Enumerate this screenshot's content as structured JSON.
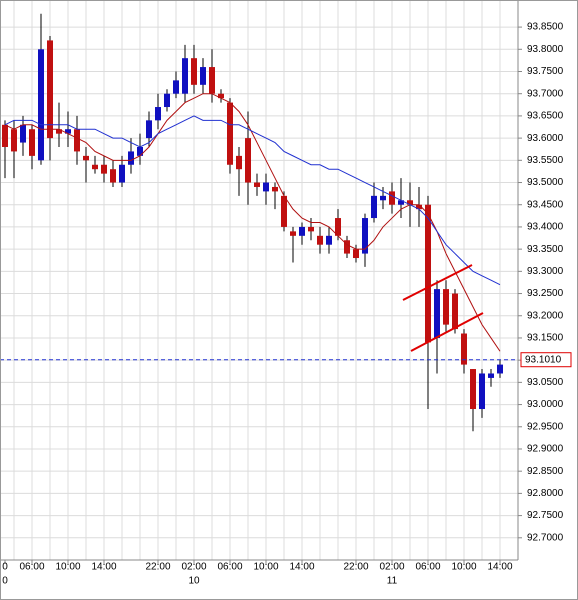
{
  "chart_data": {
    "type": "candlestick",
    "categories": [
      "0",
      null,
      null,
      "06:00",
      null,
      null,
      null,
      "10:00",
      null,
      null,
      null,
      "14:00",
      null,
      null,
      null,
      null,
      null,
      "22:00",
      null,
      null,
      null,
      "02:00",
      null,
      null,
      null,
      "06:00",
      null,
      null,
      null,
      "10:00",
      null,
      null,
      null,
      "14:00",
      null,
      null,
      null,
      null,
      null,
      "22:00",
      null,
      null,
      null,
      "02:00",
      null,
      null,
      null,
      "06:00",
      null,
      null,
      null,
      "10:00",
      null,
      null,
      null,
      "14:00"
    ],
    "day_labels": [
      "0",
      null,
      null,
      null,
      null,
      null,
      null,
      null,
      null,
      null,
      null,
      null,
      null,
      null,
      null,
      null,
      null,
      null,
      null,
      null,
      null,
      "10",
      null,
      null,
      null,
      null,
      null,
      null,
      null,
      null,
      null,
      null,
      null,
      null,
      null,
      null,
      null,
      null,
      null,
      null,
      null,
      null,
      null,
      "11",
      null,
      null,
      null,
      null,
      null,
      null,
      null,
      null,
      null,
      null,
      null,
      null
    ],
    "open": [
      93.63,
      93.62,
      93.59,
      93.62,
      93.55,
      93.82,
      93.62,
      93.61,
      93.62,
      93.56,
      93.54,
      93.54,
      93.53,
      93.5,
      93.54,
      93.56,
      93.6,
      93.64,
      93.67,
      93.7,
      93.7,
      93.78,
      93.72,
      93.76,
      93.7,
      93.68,
      93.56,
      93.6,
      93.5,
      93.48,
      93.49,
      93.47,
      93.39,
      93.38,
      93.4,
      93.38,
      93.36,
      93.42,
      93.37,
      93.35,
      93.34,
      93.42,
      93.46,
      93.48,
      93.45,
      93.46,
      93.45,
      93.45,
      93.15,
      93.26,
      93.25,
      93.16,
      93.08,
      92.99,
      93.06,
      93.07
    ],
    "high": [
      93.64,
      93.64,
      93.65,
      93.63,
      93.88,
      93.83,
      93.68,
      93.66,
      93.65,
      93.58,
      93.56,
      93.56,
      93.55,
      93.56,
      93.6,
      93.61,
      93.66,
      93.7,
      93.71,
      93.75,
      93.81,
      93.81,
      93.78,
      93.8,
      93.71,
      93.69,
      93.58,
      93.66,
      93.52,
      93.52,
      93.5,
      93.48,
      93.4,
      93.41,
      93.42,
      93.4,
      93.4,
      93.44,
      93.38,
      93.36,
      93.43,
      93.5,
      93.49,
      93.5,
      93.51,
      93.5,
      93.49,
      93.47,
      93.28,
      93.28,
      93.26,
      93.17,
      93.08,
      93.08,
      93.08,
      93.1
    ],
    "low": [
      93.51,
      93.51,
      93.56,
      93.53,
      93.54,
      93.55,
      93.58,
      93.58,
      93.54,
      93.5,
      93.52,
      93.5,
      93.49,
      93.49,
      93.52,
      93.54,
      93.58,
      93.62,
      93.66,
      93.69,
      93.68,
      93.7,
      93.7,
      93.68,
      93.68,
      93.52,
      93.47,
      93.45,
      93.47,
      93.45,
      93.44,
      93.39,
      93.32,
      93.36,
      93.37,
      93.34,
      93.34,
      93.37,
      93.33,
      93.32,
      93.31,
      93.41,
      93.44,
      93.43,
      93.42,
      93.4,
      93.4,
      92.99,
      93.07,
      93.16,
      93.16,
      93.07,
      92.94,
      92.97,
      93.04,
      93.06
    ],
    "close": [
      93.58,
      93.57,
      93.63,
      93.56,
      93.8,
      93.6,
      93.61,
      93.62,
      93.57,
      93.55,
      93.53,
      93.52,
      93.5,
      93.54,
      93.57,
      93.58,
      93.64,
      93.67,
      93.7,
      93.73,
      93.78,
      93.72,
      93.76,
      93.7,
      93.69,
      93.54,
      93.53,
      93.5,
      93.49,
      93.5,
      93.48,
      93.4,
      93.38,
      93.4,
      93.39,
      93.36,
      93.38,
      93.38,
      93.34,
      93.33,
      93.42,
      93.47,
      93.47,
      93.45,
      93.46,
      93.45,
      93.44,
      93.14,
      93.26,
      93.18,
      93.17,
      93.09,
      92.99,
      93.07,
      93.07,
      93.09
    ],
    "up_color": "#1010c0",
    "down_color": "#c01010",
    "series": [
      {
        "color": "#b01010",
        "values": [
          93.63,
          93.62,
          93.63,
          93.63,
          93.62,
          93.62,
          93.62,
          93.61,
          93.6,
          93.59,
          93.57,
          93.56,
          93.55,
          93.55,
          93.55,
          93.56,
          93.58,
          93.61,
          93.64,
          93.66,
          93.68,
          93.69,
          93.7,
          93.7,
          93.69,
          93.68,
          93.66,
          93.63,
          93.59,
          93.55,
          93.51,
          93.47,
          93.44,
          93.42,
          93.41,
          93.41,
          93.4,
          93.38,
          93.36,
          93.35,
          93.35,
          93.37,
          93.4,
          93.42,
          93.44,
          93.45,
          93.45,
          93.43,
          93.39,
          93.34,
          93.3,
          93.26,
          93.22,
          93.18,
          93.15,
          93.12
        ]
      },
      {
        "color": "#2030d0",
        "values": [
          93.63,
          93.64,
          93.64,
          93.64,
          93.63,
          93.63,
          93.63,
          93.63,
          93.62,
          93.62,
          93.62,
          93.61,
          93.6,
          93.6,
          93.59,
          93.58,
          93.59,
          93.61,
          93.62,
          93.63,
          93.64,
          93.65,
          93.64,
          93.64,
          93.64,
          93.63,
          93.63,
          93.62,
          93.61,
          93.6,
          93.59,
          93.57,
          93.56,
          93.55,
          93.54,
          93.54,
          93.53,
          93.53,
          93.52,
          93.51,
          93.5,
          93.49,
          93.48,
          93.47,
          93.46,
          93.45,
          93.44,
          93.42,
          93.39,
          93.36,
          93.34,
          93.32,
          93.3,
          93.29,
          93.28,
          93.27
        ]
      }
    ],
    "last_price": {
      "value": 93.101,
      "label": "93.1010"
    },
    "ylim": [
      92.65,
      93.911
    ],
    "yticks": [
      {
        "value": 93.85,
        "label": "93.8500"
      },
      {
        "value": 93.8,
        "label": "93.8000"
      },
      {
        "value": 93.75,
        "label": "93.7500"
      },
      {
        "value": 93.7,
        "label": "93.7000"
      },
      {
        "value": 93.65,
        "label": "93.6500"
      },
      {
        "value": 93.6,
        "label": "93.6000"
      },
      {
        "value": 93.55,
        "label": "93.5500"
      },
      {
        "value": 93.5,
        "label": "93.5000"
      },
      {
        "value": 93.45,
        "label": "93.4500"
      },
      {
        "value": 93.4,
        "label": "93.4000"
      },
      {
        "value": 93.35,
        "label": "93.3500"
      },
      {
        "value": 93.3,
        "label": "93.3000"
      },
      {
        "value": 93.25,
        "label": "93.2500"
      },
      {
        "value": 93.2,
        "label": "93.2000"
      },
      {
        "value": 93.15,
        "label": "93.1500"
      },
      {
        "value": 93.1,
        "label": "93.1000"
      },
      {
        "value": 93.05,
        "label": "93.0500"
      },
      {
        "value": 93.0,
        "label": "93.0000"
      },
      {
        "value": 92.95,
        "label": "92.9500"
      },
      {
        "value": 92.9,
        "label": "92.9000"
      },
      {
        "value": 92.85,
        "label": "92.8500"
      },
      {
        "value": 92.8,
        "label": "92.8000"
      },
      {
        "value": 92.75,
        "label": "92.7500"
      },
      {
        "value": 92.7,
        "label": "92.7000"
      }
    ],
    "grid": true
  }
}
